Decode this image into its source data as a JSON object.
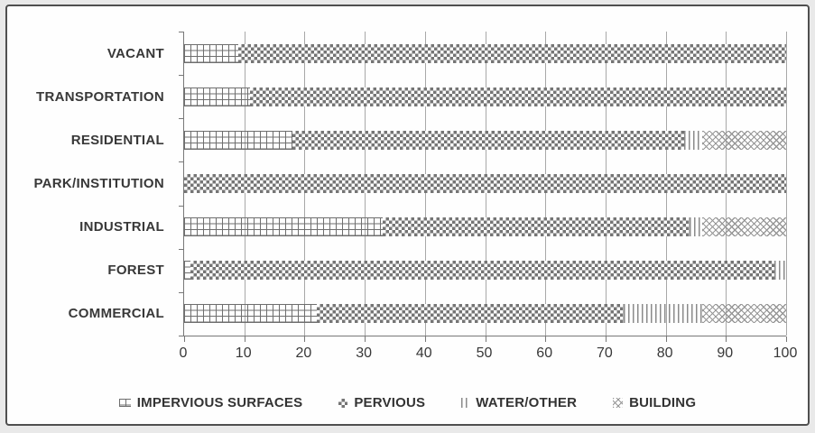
{
  "chart_data": {
    "type": "bar",
    "orientation": "horizontal",
    "stacked": true,
    "title": "",
    "xlabel": "",
    "ylabel": "",
    "categories": [
      "VACANT",
      "TRANSPORTATION",
      "RESIDENTIAL",
      "PARK/INSTITUTION",
      "INDUSTRIAL",
      "FOREST",
      "COMMERCIAL"
    ],
    "series": [
      {
        "name": "IMPERVIOUS SURFACES",
        "pattern": "impervious-grid",
        "values": [
          9,
          11,
          18,
          0,
          33,
          1,
          22
        ]
      },
      {
        "name": "PERVIOUS",
        "pattern": "pervious-checker",
        "values": [
          91,
          89,
          65,
          100,
          51,
          97,
          51
        ]
      },
      {
        "name": "WATER/OTHER",
        "pattern": "water-vertical-lines",
        "values": [
          0,
          0,
          3,
          0,
          2,
          2,
          13
        ]
      },
      {
        "name": "BUILDING",
        "pattern": "building-diagonal-weave",
        "values": [
          0,
          0,
          14,
          0,
          14,
          0,
          14
        ]
      }
    ],
    "xlim": [
      0,
      100
    ],
    "x_ticks": [
      0,
      10,
      20,
      30,
      40,
      50,
      60,
      70,
      80,
      90,
      100
    ],
    "grid": true,
    "legend_position": "bottom"
  },
  "colors": {
    "background": "#fefefe",
    "outer_background": "#e9e9e9",
    "frame_border": "#4f4f4f",
    "gridline": "#a8a8a8",
    "axis": "#787878",
    "text": "#383838",
    "pattern_ink": "#6e6e6e"
  }
}
